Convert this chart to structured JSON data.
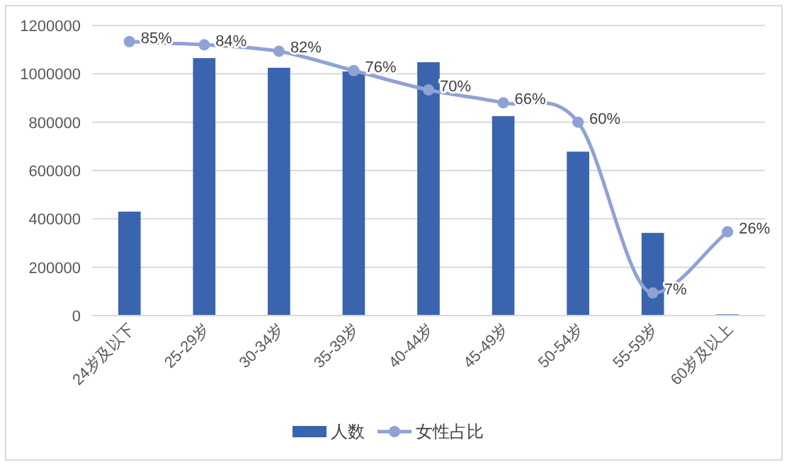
{
  "chart_data": {
    "type": "bar",
    "categories": [
      "24岁及以下",
      "25-29岁",
      "30-34岁",
      "35-39岁",
      "40-44岁",
      "45-49岁",
      "50-54岁",
      "55-59岁",
      "60岁及以上"
    ],
    "series": [
      {
        "name": "人数",
        "color": "#3a64ae",
        "values": [
          430000,
          1065000,
          1025000,
          1010000,
          1048000,
          825000,
          678000,
          342000,
          5000
        ]
      },
      {
        "name": "女性占比",
        "type": "line",
        "axis": "y2",
        "color": "#8fa2d4",
        "marker": "circle",
        "values": [
          85,
          84,
          82,
          76,
          70,
          66,
          60,
          7,
          26
        ],
        "value_labels": [
          "85%",
          "84%",
          "82%",
          "76%",
          "70%",
          "66%",
          "60%",
          "7%",
          "26%"
        ]
      }
    ],
    "ylim": [
      0,
      1200000
    ],
    "yticks": [
      0,
      200000,
      400000,
      600000,
      800000,
      1000000,
      1200000
    ],
    "y2lim": [
      0,
      90
    ],
    "grid": "y",
    "legend": "bottom"
  }
}
